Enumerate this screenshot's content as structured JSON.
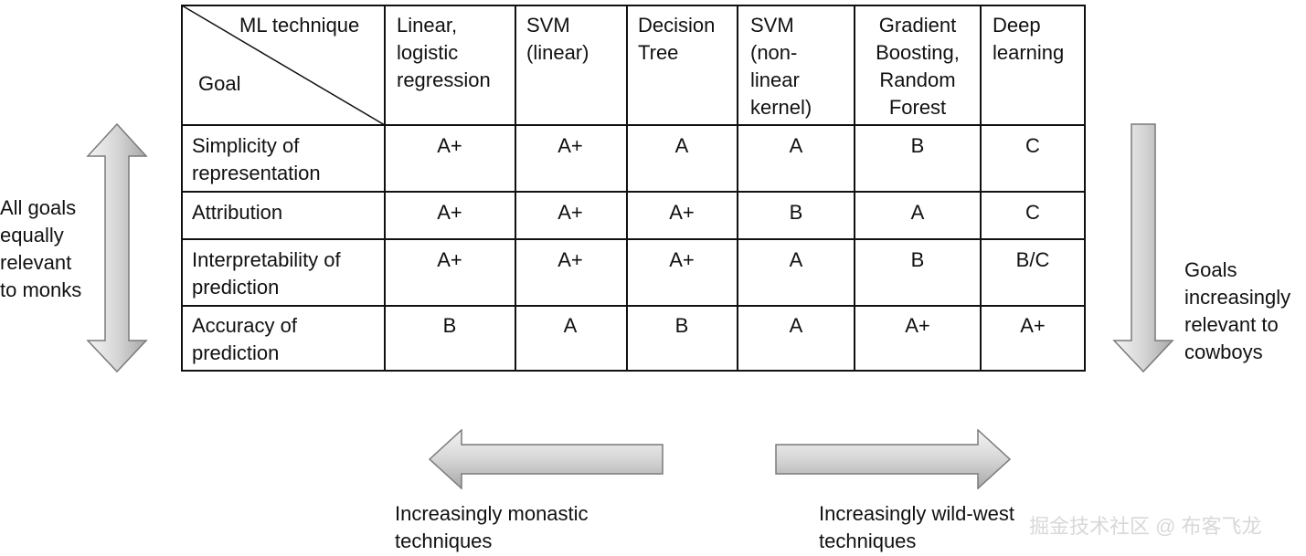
{
  "table": {
    "corner": {
      "top_label": "ML technique",
      "bottom_label": "Goal"
    },
    "columns": [
      "Linear,\nlogistic\nregression",
      "SVM\n(linear)",
      "Decision\nTree",
      "SVM\n(non-\nlinear\nkernel)",
      "Gradient\nBoosting,\nRandom\nForest",
      "Deep\nlearning"
    ],
    "rows": [
      {
        "label": "Simplicity of\nrepresentation",
        "grades": [
          "A+",
          "A+",
          "A",
          "A",
          "B",
          "C"
        ]
      },
      {
        "label": "Attribution",
        "grades": [
          "A+",
          "A+",
          "A+",
          "B",
          "A",
          "C"
        ]
      },
      {
        "label": "Interpretability of\nprediction",
        "grades": [
          "A+",
          "A+",
          "A+",
          "A",
          "B",
          "B/C"
        ]
      },
      {
        "label": "Accuracy of\nprediction",
        "grades": [
          "B",
          "A",
          "B",
          "A",
          "A+",
          "A+"
        ]
      }
    ]
  },
  "annotations": {
    "left_text": "All goals\nequally\nrelevant\nto monks",
    "right_text": "Goals\nincreasingly\nrelevant to\ncowboys",
    "bottom_left_text": "Increasingly monastic\ntechniques",
    "bottom_right_text": "Increasingly wild-west\ntechniques"
  },
  "watermark": "掘金技术社区 @ 布客飞龙",
  "colors": {
    "line": "#111111",
    "arrow_fill_light": "#f2f2f2",
    "arrow_fill_dark": "#b4b4b4",
    "arrow_stroke": "#7a7a7a",
    "watermark": "#d8d8d8"
  }
}
